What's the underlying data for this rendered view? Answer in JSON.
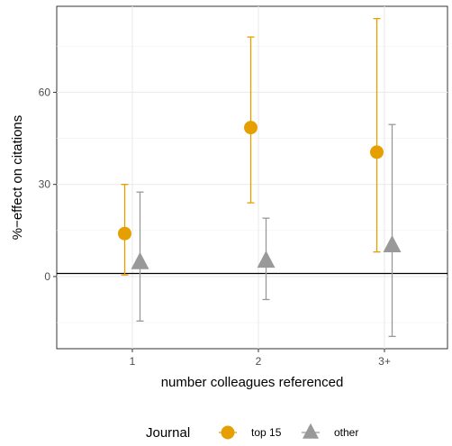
{
  "chart_data": {
    "type": "scatter",
    "xlabel": "number colleagues referenced",
    "ylabel": "%−effect on citations",
    "categories": [
      "1",
      "2",
      "3+"
    ],
    "y_ticks": [
      0,
      30,
      60
    ],
    "ylim": [
      -23.5,
      88
    ],
    "grid": true,
    "reference_line_y": 1,
    "legend": {
      "title": "Journal",
      "position": "bottom"
    },
    "series": [
      {
        "name": "top 15",
        "color": "#E69F00",
        "marker": "circle",
        "values": [
          14,
          48.5,
          40.5
        ],
        "lower": [
          0.5,
          24,
          8
        ],
        "upper": [
          30,
          78,
          84
        ]
      },
      {
        "name": "other",
        "color": "#999999",
        "marker": "triangle",
        "values": [
          4.5,
          5,
          10
        ],
        "lower": [
          -14.5,
          -7.5,
          -19.5
        ],
        "upper": [
          27.5,
          19,
          49.5
        ]
      }
    ]
  }
}
